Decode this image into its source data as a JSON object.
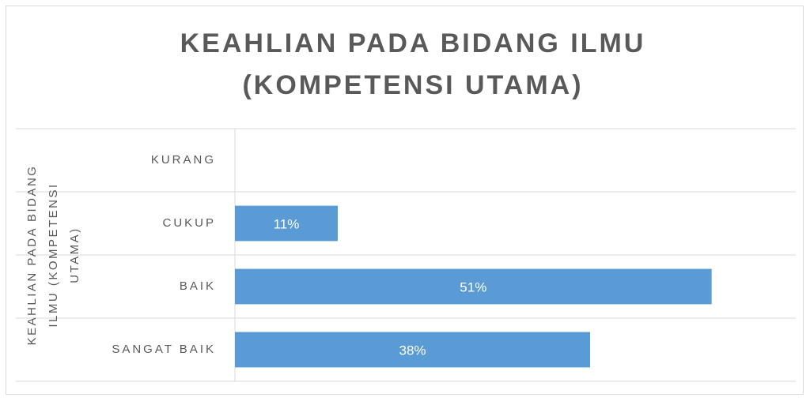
{
  "chart_data": {
    "type": "bar",
    "orientation": "horizontal",
    "title": [
      "KEAHLIAN PADA BIDANG ILMU",
      "(KOMPETENSI UTAMA)"
    ],
    "y_label": [
      "KEAHLIAN PADA BIDANG",
      "ILMU (KOMPETENSI",
      "UTAMA)"
    ],
    "categories": [
      "KURANG",
      "CUKUP",
      "BAIK",
      "SANGAT BAIK"
    ],
    "values": [
      0,
      11,
      51,
      38
    ],
    "value_labels": [
      null,
      "11%",
      "51%",
      "38%"
    ],
    "color": "#5b9bd5",
    "xlim": [
      0,
      60
    ],
    "grid": true
  }
}
